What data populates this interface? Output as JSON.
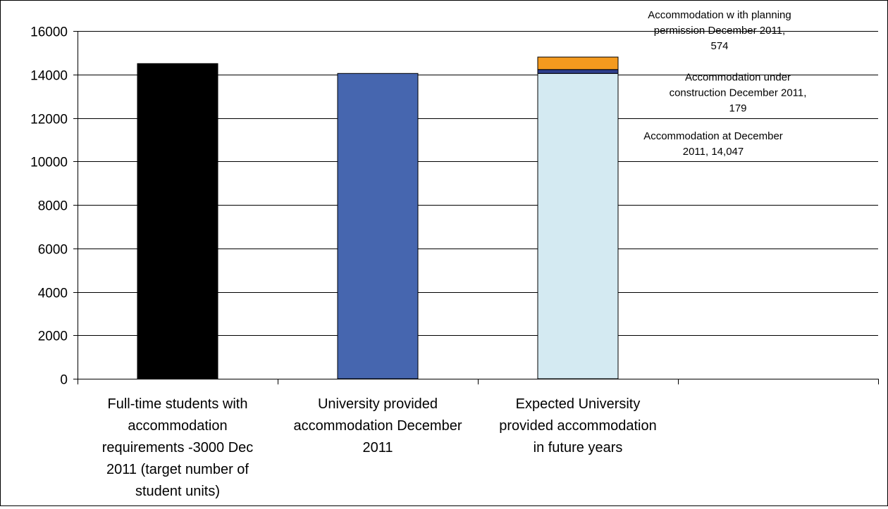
{
  "chart_data": {
    "type": "bar",
    "stacked": true,
    "ylim": [
      0,
      16000
    ],
    "yticks": [
      0,
      2000,
      4000,
      6000,
      8000,
      10000,
      12000,
      14000,
      16000
    ],
    "grid": true,
    "categories": [
      [
        "Full-time students with",
        "accommodation",
        "requirements -3000 Dec",
        "2011 (target number of",
        "student units)"
      ],
      [
        "University provided",
        "accommodation December",
        "2011"
      ],
      [
        "Expected University",
        "provided accommodation",
        "in future years"
      ]
    ],
    "bars": [
      {
        "segments": [
          {
            "value": 14500,
            "color": "#000000"
          }
        ]
      },
      {
        "segments": [
          {
            "value": 14047,
            "color": "#4666AF"
          }
        ]
      },
      {
        "segments": [
          {
            "value": 14047,
            "color": "#D4EAF2"
          },
          {
            "value": 179,
            "color": "#2E3E8C"
          },
          {
            "value": 574,
            "color": "#F49A1E"
          }
        ]
      }
    ],
    "annotations": [
      {
        "lines": [
          "Accommodation w ith planning",
          "permission December 2011,",
          "574"
        ],
        "segment": "2.2"
      },
      {
        "lines": [
          "Accommodation under",
          "construction December 2011,",
          "179"
        ],
        "segment": "2.1"
      },
      {
        "lines": [
          "Accommodation at December",
          "2011, 14,047"
        ],
        "segment": "2.0"
      }
    ]
  }
}
